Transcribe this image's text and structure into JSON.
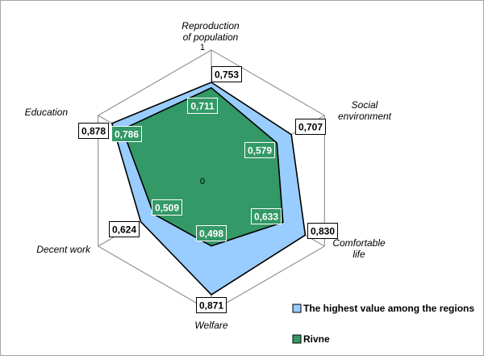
{
  "chart_data": {
    "type": "radar",
    "axes": [
      {
        "label_lines": [
          "Reproduction",
          "of population"
        ]
      },
      {
        "label_lines": [
          "Social",
          "environment"
        ]
      },
      {
        "label_lines": [
          "Comfortable",
          "life"
        ]
      },
      {
        "label_lines": [
          "Welfare"
        ]
      },
      {
        "label_lines": [
          "Decent work"
        ]
      },
      {
        "label_lines": [
          "Education"
        ]
      }
    ],
    "range": [
      0,
      1
    ],
    "tick_labels": [
      "0",
      "1"
    ],
    "series": [
      {
        "name": "The highest value among the regions",
        "values": [
          0.753,
          0.707,
          0.83,
          0.871,
          0.624,
          0.878
        ],
        "labels": [
          "0,753",
          "0,707",
          "0,830",
          "0,871",
          "0,624",
          "0,878"
        ],
        "color": "#99ccff"
      },
      {
        "name": "Rivne",
        "values": [
          0.711,
          0.579,
          0.633,
          0.498,
          0.509,
          0.786
        ],
        "labels": [
          "0,711",
          "0,579",
          "0,633",
          "0,498",
          "0,509",
          "0,786"
        ],
        "color": "#339966"
      }
    ],
    "gridlines": true,
    "legend_position": "bottom-right"
  }
}
